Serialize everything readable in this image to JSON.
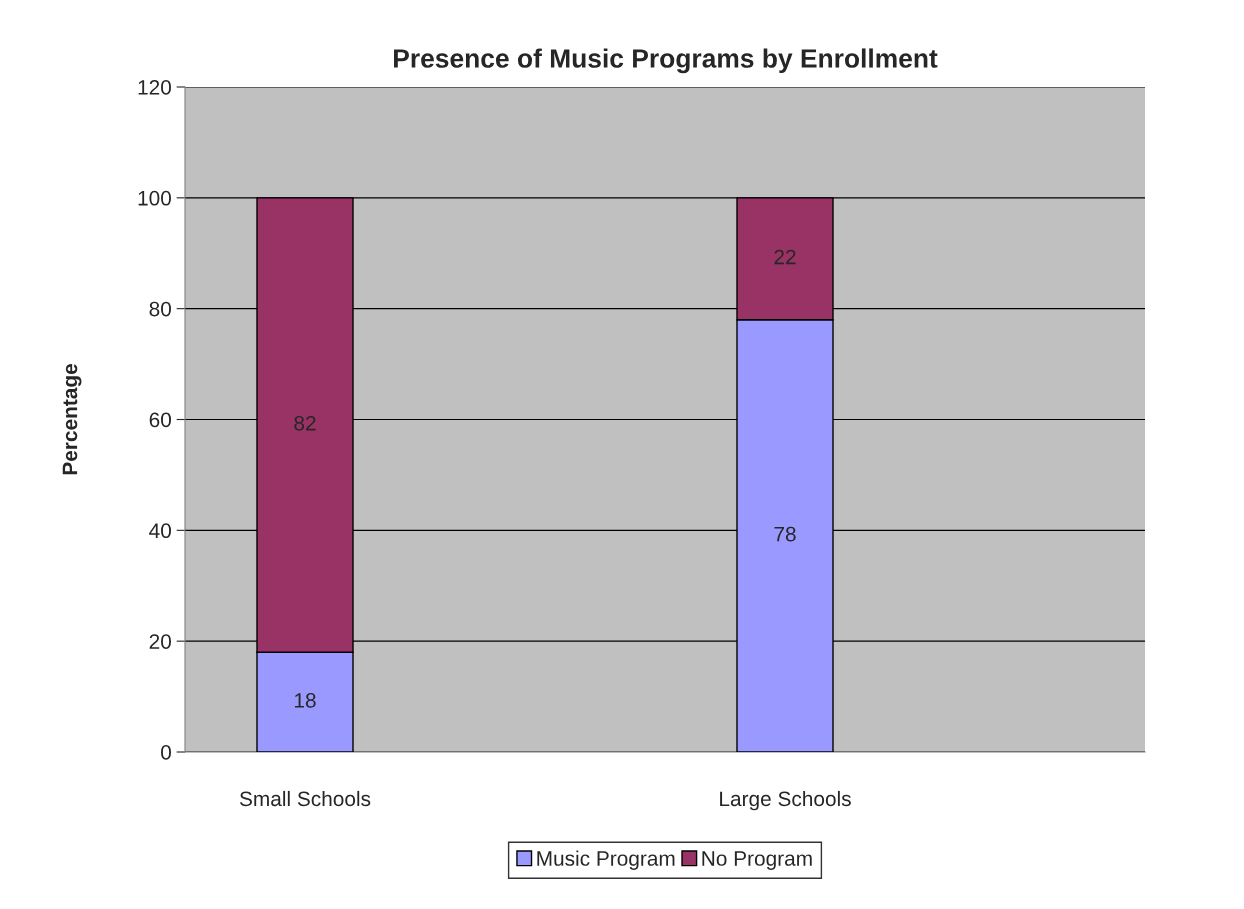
{
  "chart_data": {
    "type": "bar",
    "title": "Presence of Music Programs by Enrollment",
    "ylabel": "Percentage",
    "categories": [
      "Small Schools",
      null,
      "Large Schools",
      null
    ],
    "series": [
      {
        "name": "Music Program",
        "color": "#9999ff",
        "values": [
          18,
          null,
          78,
          null
        ]
      },
      {
        "name": "No Program",
        "color": "#993366",
        "values": [
          82,
          null,
          22,
          null
        ]
      }
    ],
    "stacked": true,
    "data_labels": true,
    "ylim": [
      0,
      120
    ],
    "yticks": [
      0,
      20,
      40,
      60,
      80,
      100,
      120
    ],
    "grid": "y",
    "legend": "bottom"
  }
}
